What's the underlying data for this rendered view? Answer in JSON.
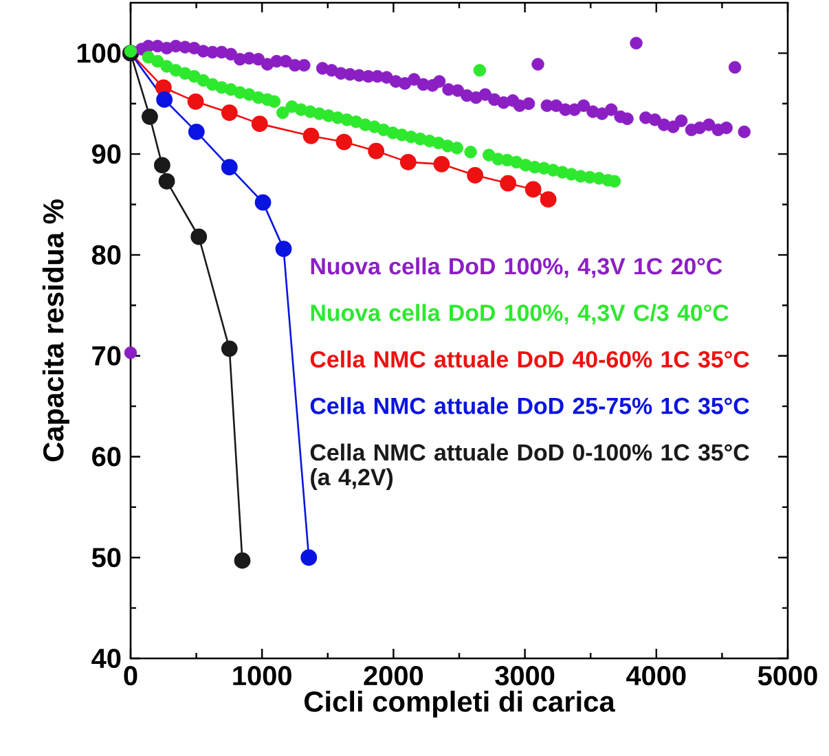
{
  "chart_data": {
    "type": "line",
    "xlabel": "Cicli completi di carica",
    "ylabel": "Capacita residua %",
    "xlim": [
      0,
      5000
    ],
    "xticks": [
      0,
      1000,
      2000,
      3000,
      4000,
      5000
    ],
    "ylim": [
      40,
      105
    ],
    "yticks": [
      40,
      50,
      60,
      70,
      80,
      90,
      100
    ],
    "marker": "circle",
    "series": [
      {
        "name": "Nuova cella DoD 100%, 4,3V 1C 20°C",
        "type": "scatter",
        "color": "#8b1fc4",
        "x": [
          0,
          83,
          135,
          205,
          275,
          344,
          414,
          484,
          553,
          623,
          693,
          763,
          832,
          902,
          972,
          1041,
          1111,
          1180,
          1250,
          1320,
          1460,
          1530,
          1600,
          1669,
          1739,
          1809,
          1878,
          1948,
          2018,
          2087,
          2157,
          2227,
          2297,
          2349,
          2419,
          2489,
          2559,
          2628,
          2698,
          2768,
          2838,
          2908,
          2960,
          3029,
          3099,
          3168,
          3238,
          3308,
          3377,
          3447,
          3517,
          3587,
          3657,
          3727,
          3779,
          3847,
          3919,
          3989,
          4058,
          4128,
          4190,
          4267,
          4330,
          4400,
          4470,
          4533,
          4598,
          4669
        ],
        "values": [
          70.3,
          100.4,
          100.7,
          100.7,
          100.5,
          100.7,
          100.6,
          100.5,
          100.2,
          100.1,
          100.1,
          99.9,
          99.4,
          99.5,
          99.4,
          98.9,
          99.2,
          99.2,
          98.8,
          98.8,
          98.5,
          98.3,
          98.0,
          97.9,
          97.8,
          97.7,
          97.7,
          97.6,
          97.2,
          97.0,
          97.4,
          96.9,
          96.8,
          97.2,
          96.4,
          96.3,
          95.8,
          95.6,
          95.9,
          95.4,
          95.1,
          95.3,
          94.8,
          95.0,
          98.9,
          94.8,
          94.8,
          94.4,
          94.4,
          94.8,
          94.2,
          94.0,
          94.4,
          93.7,
          93.5,
          101.0,
          93.6,
          93.4,
          92.9,
          92.7,
          93.3,
          92.4,
          92.6,
          92.9,
          92.4,
          92.6,
          98.6,
          92.2
        ]
      },
      {
        "name": "Nuova cella DoD 100%, 4,3V C/3 40°C",
        "type": "scatter",
        "color": "#2ee82e",
        "x": [
          0,
          135,
          205,
          275,
          344,
          414,
          484,
          553,
          623,
          693,
          763,
          832,
          902,
          972,
          1041,
          1093,
          1157,
          1227,
          1297,
          1367,
          1436,
          1506,
          1576,
          1646,
          1716,
          1785,
          1855,
          1925,
          1995,
          2064,
          2134,
          2204,
          2274,
          2343,
          2413,
          2483,
          2587,
          2656,
          2726,
          2796,
          2866,
          2936,
          3006,
          3075,
          3145,
          3215,
          3285,
          3354,
          3424,
          3494,
          3564,
          3633,
          3682
        ],
        "values": [
          100.2,
          99.6,
          99.2,
          98.7,
          98.3,
          98.0,
          97.7,
          97.3,
          96.9,
          96.6,
          96.4,
          96.1,
          95.9,
          95.6,
          95.4,
          95.2,
          94.1,
          94.7,
          94.4,
          94.2,
          94.0,
          93.8,
          93.6,
          93.4,
          93.2,
          92.9,
          92.7,
          92.4,
          92.1,
          91.9,
          91.7,
          91.5,
          91.3,
          91.1,
          90.8,
          90.6,
          90.2,
          98.3,
          89.9,
          89.5,
          89.4,
          89.2,
          88.9,
          88.7,
          88.6,
          88.4,
          88.2,
          88.0,
          87.8,
          87.7,
          87.6,
          87.4,
          87.3
        ]
      },
      {
        "name": "Cella NMC attuale DoD 40-60% 1C 35°C",
        "color": "#ee1111",
        "x": [
          0,
          250,
          495,
          752,
          982,
          1373,
          1624,
          1868,
          2112,
          2366,
          2621,
          2872,
          3063,
          3178
        ],
        "values": [
          100,
          96.6,
          95.2,
          94.1,
          93.0,
          91.8,
          91.2,
          90.3,
          89.2,
          89.0,
          87.9,
          87.1,
          86.5,
          85.5
        ]
      },
      {
        "name": "Cella NMC attuale DoD 25-75% 1C 35°C",
        "color": "#0a14e0",
        "x": [
          0,
          257,
          501,
          752,
          1007,
          1164,
          1356
        ],
        "values": [
          100,
          95.4,
          92.2,
          88.7,
          85.2,
          80.6,
          50.0
        ]
      },
      {
        "name": "Cella NMC attuale DoD 0-100% 1C 35°C (a 4,2V)",
        "color": "#1a1a1a",
        "x": [
          0,
          146,
          240,
          275,
          519,
          752,
          850
        ],
        "values": [
          100,
          93.7,
          88.9,
          87.3,
          81.8,
          70.7,
          49.7
        ]
      }
    ]
  }
}
